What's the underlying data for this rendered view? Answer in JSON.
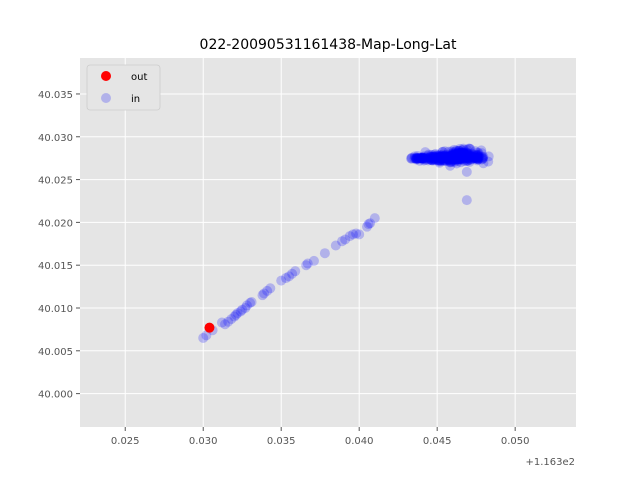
{
  "chart_data": {
    "type": "scatter",
    "title": "022-20090531161438-Map-Long-Lat",
    "xlabel": "",
    "ylabel": "",
    "x_offset_label": "+1.163e2",
    "xlim": [
      0.0221,
      0.0539
    ],
    "ylim": [
      39.9961,
      40.0392
    ],
    "x_ticks": [
      0.025,
      0.03,
      0.035,
      0.04,
      0.045,
      0.05
    ],
    "x_tick_labels": [
      "0.025",
      "0.030",
      "0.035",
      "0.040",
      "0.045",
      "0.050"
    ],
    "y_ticks": [
      40.0,
      40.005,
      40.01,
      40.015,
      40.02,
      40.025,
      40.03,
      40.035
    ],
    "y_tick_labels": [
      "40.000",
      "40.005",
      "40.010",
      "40.015",
      "40.020",
      "40.025",
      "40.030",
      "40.035"
    ],
    "grid": true,
    "legend_position": "top-left",
    "series": [
      {
        "name": "out",
        "color": "#ff0000",
        "alpha": 1.0,
        "points": [
          [
            0.0304,
            40.0077
          ]
        ]
      },
      {
        "name": "in",
        "color": "#0000ff",
        "alpha": 0.22,
        "points": [
          [
            0.03,
            40.0065
          ],
          [
            0.0302,
            40.0068
          ],
          [
            0.0306,
            40.0074
          ],
          [
            0.0312,
            40.0083
          ],
          [
            0.0314,
            40.0081
          ],
          [
            0.0316,
            40.0084
          ],
          [
            0.0318,
            40.0087
          ],
          [
            0.032,
            40.009
          ],
          [
            0.0321,
            40.0092
          ],
          [
            0.0322,
            40.0094
          ],
          [
            0.0324,
            40.0096
          ],
          [
            0.0325,
            40.0098
          ],
          [
            0.0327,
            40.01
          ],
          [
            0.0328,
            40.0103
          ],
          [
            0.033,
            40.0106
          ],
          [
            0.0331,
            40.0107
          ],
          [
            0.0338,
            40.0115
          ],
          [
            0.0339,
            40.0117
          ],
          [
            0.0341,
            40.012
          ],
          [
            0.0343,
            40.0123
          ],
          [
            0.035,
            40.0132
          ],
          [
            0.0353,
            40.0135
          ],
          [
            0.0355,
            40.0137
          ],
          [
            0.0357,
            40.014
          ],
          [
            0.0359,
            40.0143
          ],
          [
            0.0366,
            40.015
          ],
          [
            0.0367,
            40.0152
          ],
          [
            0.0371,
            40.0155
          ],
          [
            0.0378,
            40.0164
          ],
          [
            0.0385,
            40.0173
          ],
          [
            0.0389,
            40.0178
          ],
          [
            0.0391,
            40.018
          ],
          [
            0.0394,
            40.0184
          ],
          [
            0.0396,
            40.0186
          ],
          [
            0.0398,
            40.0187
          ],
          [
            0.04,
            40.0186
          ],
          [
            0.0405,
            40.0195
          ],
          [
            0.0406,
            40.0198
          ],
          [
            0.0407,
            40.0199
          ],
          [
            0.041,
            40.0205
          ],
          [
            0.0469,
            40.0226
          ],
          [
            0.0469,
            40.0259
          ]
        ],
        "clusters": [
          {
            "center": [
              0.0454,
              40.0275
            ],
            "spread": [
              0.0016,
              0.0004
            ],
            "count": 160
          },
          {
            "center": [
              0.0465,
              40.0278
            ],
            "spread": [
              0.0013,
              0.0007
            ],
            "count": 170
          },
          {
            "center": [
              0.0438,
              40.0275
            ],
            "spread": [
              0.0006,
              0.0001
            ],
            "count": 25
          },
          {
            "center": [
              0.0476,
              40.0275
            ],
            "spread": [
              0.0006,
              0.0002
            ],
            "count": 25
          }
        ]
      }
    ]
  }
}
